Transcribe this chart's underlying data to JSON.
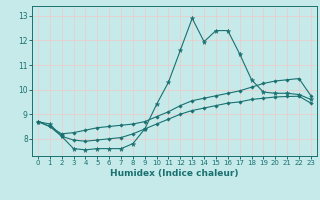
{
  "xlabel": "Humidex (Indice chaleur)",
  "xlim": [
    -0.5,
    23.5
  ],
  "ylim": [
    7.3,
    13.4
  ],
  "yticks": [
    8,
    9,
    10,
    11,
    12,
    13
  ],
  "xticks": [
    0,
    1,
    2,
    3,
    4,
    5,
    6,
    7,
    8,
    9,
    10,
    11,
    12,
    13,
    14,
    15,
    16,
    17,
    18,
    19,
    20,
    21,
    22,
    23
  ],
  "bg_color": "#c6eaea",
  "grid_color": "#f0c8c8",
  "line_color": "#1a7070",
  "hours": [
    0,
    1,
    2,
    3,
    4,
    5,
    6,
    7,
    8,
    9,
    10,
    11,
    12,
    13,
    14,
    15,
    16,
    17,
    18,
    19,
    20,
    21,
    22,
    23
  ],
  "line_peak": [
    8.7,
    8.6,
    8.1,
    7.6,
    7.55,
    7.6,
    7.6,
    7.6,
    7.8,
    8.4,
    9.4,
    10.3,
    11.6,
    12.9,
    11.95,
    12.4,
    12.4,
    11.45,
    10.4,
    9.9,
    9.85,
    9.85,
    9.8,
    9.6
  ],
  "line_high": [
    8.7,
    8.5,
    8.2,
    8.25,
    8.35,
    8.45,
    8.5,
    8.55,
    8.6,
    8.7,
    8.9,
    9.1,
    9.35,
    9.55,
    9.65,
    9.75,
    9.85,
    9.95,
    10.1,
    10.25,
    10.35,
    10.4,
    10.45,
    9.75
  ],
  "line_low": [
    8.7,
    8.5,
    8.1,
    7.95,
    7.9,
    7.95,
    8.0,
    8.05,
    8.2,
    8.4,
    8.6,
    8.8,
    9.0,
    9.15,
    9.25,
    9.35,
    9.45,
    9.5,
    9.6,
    9.65,
    9.7,
    9.72,
    9.73,
    9.45
  ]
}
